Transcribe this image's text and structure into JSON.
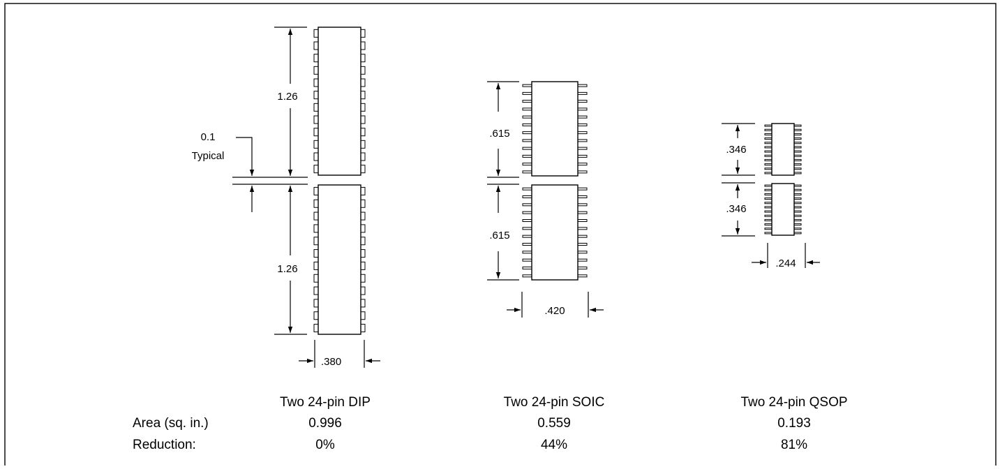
{
  "packages": [
    {
      "name": "Two 24-pin DIP",
      "length": "1.26",
      "width": ".380",
      "area": "0.996",
      "reduction": "0%"
    },
    {
      "name": "Two 24-pin SOIC",
      "length": ".615",
      "width": ".420",
      "area": "0.559",
      "reduction": "44%"
    },
    {
      "name": "Two 24-pin QSOP",
      "length": ".346",
      "width": ".244",
      "area": "0.193",
      "reduction": "81%"
    }
  ],
  "spacing": {
    "value": "0.1",
    "note": "Typical"
  },
  "row_labels": {
    "area": "Area (sq. in.)",
    "reduction": "Reduction:"
  },
  "colors": {
    "line": "#000000",
    "background": "#ffffff"
  }
}
